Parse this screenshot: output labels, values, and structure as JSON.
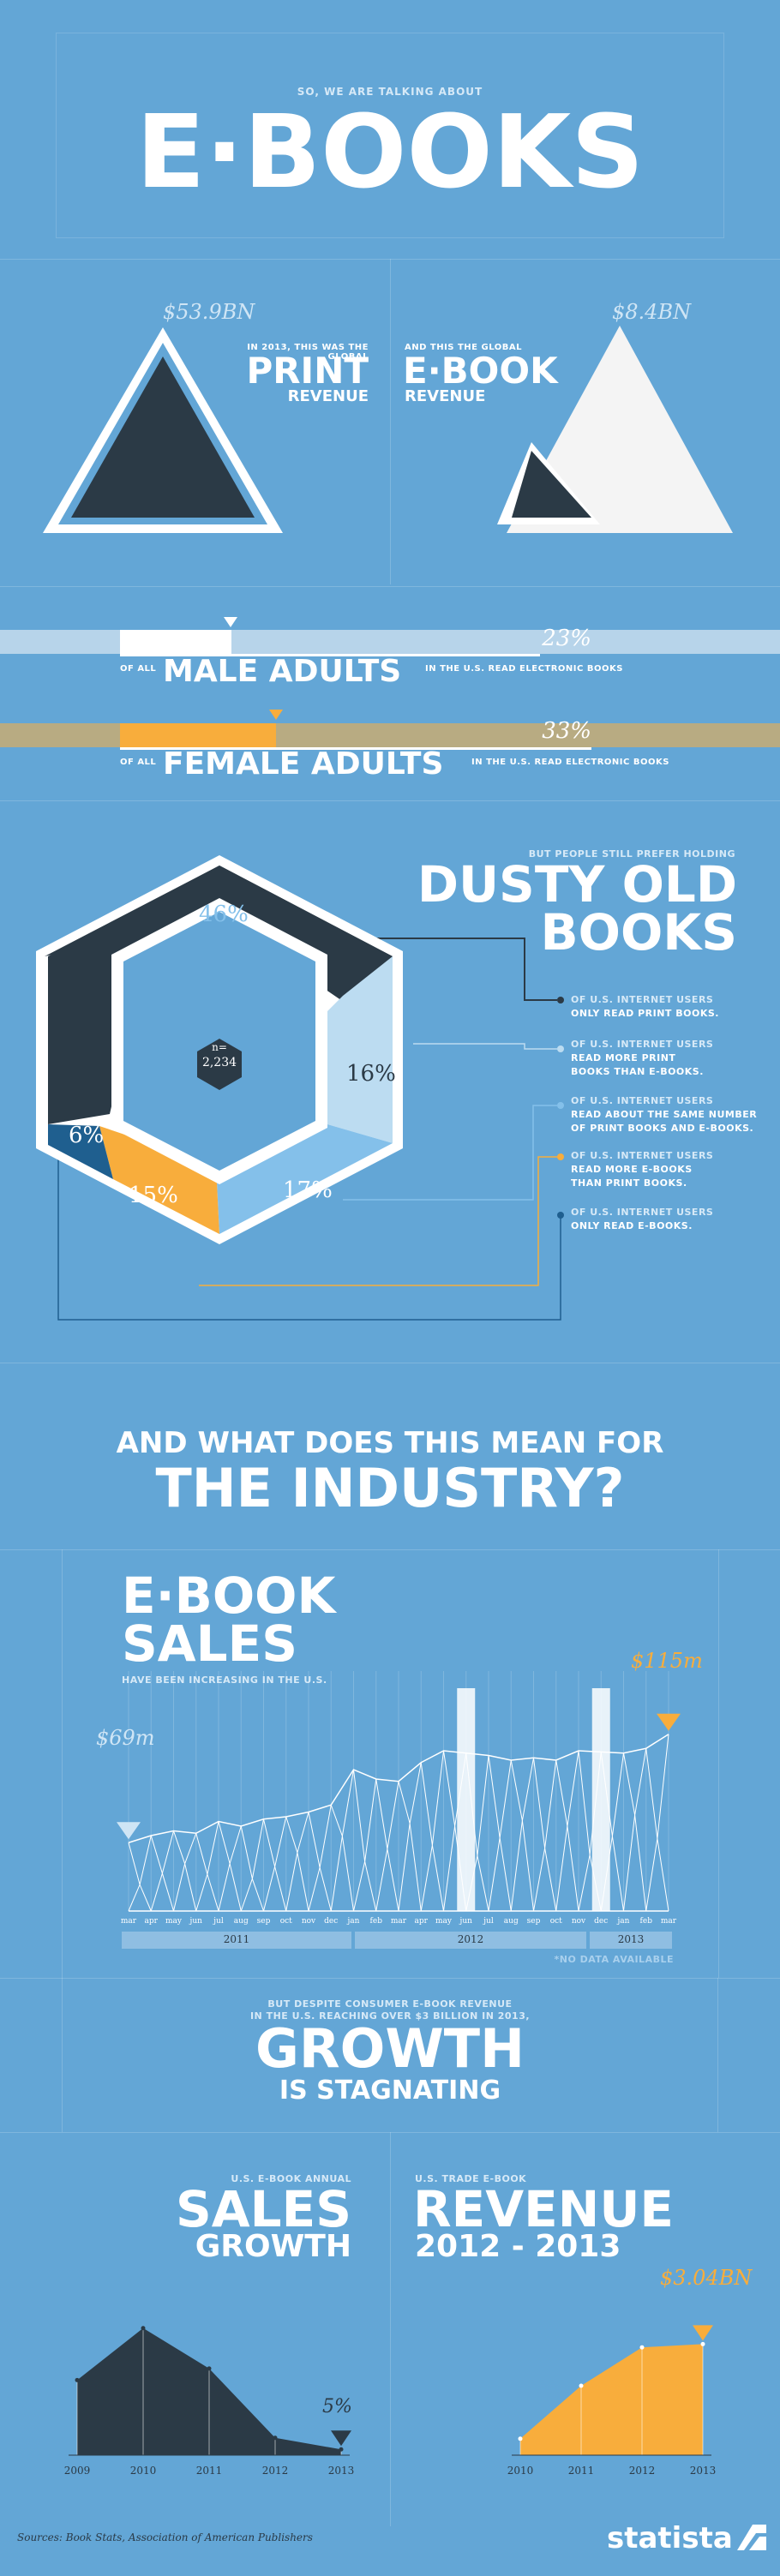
{
  "header": {
    "kicker": "SO, WE ARE TALKING ABOUT",
    "title": "E·BOOKS"
  },
  "revenue": {
    "print": {
      "amount": "$53.9BN",
      "intro": "IN 2013, THIS WAS THE GLOBAL",
      "label": "PRINT",
      "sublabel": "REVENUE",
      "value_bn": 53.9
    },
    "ebook": {
      "amount": "$8.4BN",
      "intro": "AND THIS THE GLOBAL",
      "label": "E·BOOK",
      "sublabel": "REVENUE",
      "value_bn": 8.4
    }
  },
  "adults": {
    "male": {
      "pct_text": "23%",
      "pct": 23,
      "prefix": "OF ALL",
      "label": "MALE ADULTS",
      "suffix": "IN THE U.S. READ ELECTRONIC BOOKS"
    },
    "female": {
      "pct_text": "33%",
      "pct": 33,
      "prefix": "OF ALL",
      "label": "FEMALE ADULTS",
      "suffix": "IN THE U.S. READ ELECTRONIC BOOKS"
    }
  },
  "dusty": {
    "kicker": "BUT PEOPLE STILL PREFER HOLDING",
    "title_line1": "DUSTY OLD",
    "title_line2": "BOOKS",
    "center_label_n": "n=",
    "center_label_v": "2,234",
    "segments": [
      {
        "pct_text": "46%",
        "pct": 46,
        "color": "#2b3a46",
        "l1": "OF U.S. INTERNET USERS",
        "l2": "ONLY READ PRINT BOOKS.",
        "l3": ""
      },
      {
        "pct_text": "16%",
        "pct": 16,
        "color": "#bcdcf1",
        "l1": "OF U.S. INTERNET USERS",
        "l2": "READ MORE PRINT",
        "l3": "BOOKS THAN E-BOOKS."
      },
      {
        "pct_text": "17%",
        "pct": 17,
        "color": "#84c0ea",
        "l1": "OF U.S. INTERNET USERS",
        "l2": "READ ABOUT THE SAME NUMBER",
        "l3": "OF PRINT BOOKS AND E-BOOKS."
      },
      {
        "pct_text": "15%",
        "pct": 15,
        "color": "#f8ad3c",
        "l1": "OF U.S. INTERNET USERS",
        "l2": "READ MORE E-BOOKS",
        "l3": "THAN PRINT BOOKS."
      },
      {
        "pct_text": "6%",
        "pct": 6,
        "color": "#1f5f8f",
        "l1": "OF U.S. INTERNET USERS",
        "l2": "ONLY READ E-BOOKS.",
        "l3": ""
      }
    ]
  },
  "industry": {
    "line1": "AND WHAT DOES THIS MEAN FOR",
    "line2": "THE INDUSTRY?"
  },
  "sales": {
    "title1": "E·BOOK",
    "title2": "SALES",
    "subtitle": "HAVE BEEN INCREASING IN THE U.S.",
    "start_label": "$69m",
    "end_label": "$115m",
    "no_data": "*NO DATA AVAILABLE",
    "years": [
      "2011",
      "2012",
      "2013"
    ]
  },
  "growth": {
    "kicker1": "BUT DESPITE CONSUMER E-BOOK REVENUE",
    "kicker2": "IN THE U.S. REACHING OVER $3 BILLION IN 2013,",
    "title": "GROWTH",
    "subtitle": "IS STAGNATING"
  },
  "sales_growth": {
    "kicker": "U.S. E-BOOK ANNUAL",
    "title1": "SALES",
    "title2": "GROWTH",
    "end_label": "5%"
  },
  "trade_revenue": {
    "kicker": "U.S. TRADE E-BOOK",
    "title1": "REVENUE",
    "title2": "2012 - 2013",
    "end_label": "$3.04BN"
  },
  "chart_data": [
    {
      "type": "line",
      "title": "E·BOOK SALES",
      "x": [
        "mar",
        "apr",
        "may",
        "jun",
        "jul",
        "aug",
        "sep",
        "oct",
        "nov",
        "dec",
        "jan",
        "feb",
        "mar",
        "apr",
        "may",
        "jun",
        "jul",
        "aug",
        "sep",
        "oct",
        "nov",
        "dec",
        "jan",
        "feb",
        "mar"
      ],
      "values": [
        69,
        72,
        74,
        73,
        78,
        76,
        79,
        80,
        82,
        85,
        100,
        96,
        95,
        103,
        108,
        null,
        106,
        104,
        105,
        104,
        108,
        null,
        107,
        109,
        115
      ],
      "series": [
        {
          "name": "",
          "values": [
            69,
            72,
            74,
            73,
            78,
            76,
            79,
            80,
            82,
            85,
            100,
            96,
            95,
            103,
            108,
            null,
            106,
            104,
            105,
            104,
            108,
            null,
            107,
            109,
            115
          ]
        }
      ],
      "missing_note": "*NO DATA AVAILABLE"
    },
    {
      "type": "area",
      "title": "SALES GROWTH",
      "categories": [
        "2009",
        "2010",
        "2011",
        "2012",
        "2013"
      ],
      "values": [
        165,
        210,
        175,
        115,
        105
      ]
    },
    {
      "type": "area",
      "title": "REVENUE 2012 - 2013",
      "categories": [
        "2010",
        "2011",
        "2012",
        "2013"
      ],
      "values": [
        0.45,
        1.9,
        2.95,
        3.04
      ]
    }
  ],
  "footer": {
    "source": "Sources: Book Stats, Association of American Publishers",
    "brand": "statista"
  }
}
